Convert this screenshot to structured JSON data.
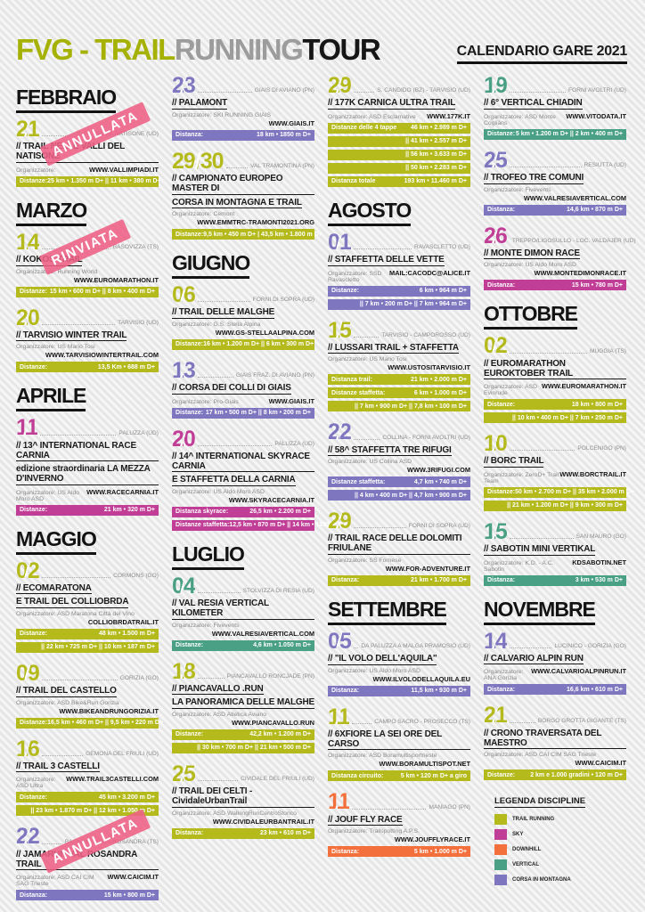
{
  "header": {
    "logo_part1": "FVG - TRAIL",
    "logo_part2": "RUNNING",
    "logo_part3": "TOUR",
    "label": "CALENDARIO GARE ",
    "year": "2021"
  },
  "disciplines": {
    "trail": "#b4ba1c",
    "sky": "#c13e97",
    "downhill": "#f3703c",
    "vertical": "#4aa084",
    "mountain": "#7f76c0"
  },
  "columns": [
    {
      "blocks": [
        {
          "month": "FEBBRAIO",
          "events": [
            {
              "d": "trail",
              "date": "21",
              "loc": "S. PIETRO AL NATISONE (UD)",
              "title": [
                "// TRAIL NELLE VALLI DEL NATISONE"
              ],
              "org": "Organizzatore:",
              "site": "WWW.VALLIMPIADI.IT",
              "inline": true,
              "stamp": "ANNULLATA",
              "bars": [
                [
                  "Distanze:",
                  "25 km • 1.350 m D+ || 11 km • 380 m D+"
                ]
              ]
            }
          ]
        },
        {
          "month": "MARZO",
          "events": [
            {
              "d": "trail",
              "date": "14",
              "loc": "BASOVIZZA (TS)",
              "title": [
                "// KOKOS TRAIL"
              ],
              "org": "Organizzatore: Running World",
              "site": "WWW.EUROMARATHON.IT",
              "inline": false,
              "stamp": "RINVIATA",
              "bars": [
                [
                  "Distanze:",
                  "15 km • 600 m D+ || 8 km • 400 m D+"
                ]
              ]
            },
            {
              "d": "trail",
              "date": "20",
              "loc": "TARVISIO (UD)",
              "title": [
                "// TARVISIO WINTER TRAIL"
              ],
              "org": "Organizzatore: US Mario Tosi",
              "site": "WWW.TARVISIOWINTERTRAIL.COM",
              "inline": false,
              "bars": [
                [
                  "Distanze:",
                  "13,5 Km • 688 m D+"
                ]
              ]
            }
          ]
        },
        {
          "month": "APRILE",
          "events": [
            {
              "d": "sky",
              "date": "11",
              "loc": "PALUZZA (UD)",
              "title": [
                "// 13^ INTERNATIONAL RACE CARNIA",
                "edizione straordinaria LA MEZZA D'INVERNO"
              ],
              "org": "Organizzatore: US Aldo Moro ASD",
              "site": "WWW.RACECARNIA.IT",
              "inline": true,
              "bars": [
                [
                  "Distanze:",
                  "21 km • 320 m D+"
                ]
              ]
            }
          ]
        },
        {
          "month": "MAGGIO",
          "events": [
            {
              "d": "trail",
              "date": "02",
              "loc": "CORMONS (GO)",
              "title": [
                "// ECOMARATONA",
                "E TRAIL DEL COLLIOBRDA"
              ],
              "org": "Organizzatore: ASD Maratona Città del Vino",
              "site": "COLLIOBRDATRAIL.IT",
              "inline": false,
              "bars": [
                [
                  "Distanze:",
                  "48 km • 1.500 m D+"
                ],
                [
                  "",
                  "|| 22 km • 725 m D+ || 10 km • 187 m D+"
                ]
              ]
            },
            {
              "d": "trail",
              "date": "09",
              "loc": "GORIZIA (GO)",
              "title": [
                "// TRAIL DEL CASTELLO"
              ],
              "org": "Organizzatore: ASD Bike&Run Gorizia",
              "site": "WWW.BIKEANDRUNGORIZIA.IT",
              "inline": false,
              "bars": [
                [
                  "Distanze:",
                  "16,5 km • 460 m D+ || 9,5 km • 220 m D+"
                ]
              ]
            },
            {
              "d": "trail",
              "date": "16",
              "loc": "GEMONA DEL FRIULI (UD)",
              "title": [
                "// TRAIL 3 CASTELLI"
              ],
              "org": "Organizzatore: ASD Ultra",
              "site": "WWW.TRAIL3CASTELLI.COM",
              "inline": true,
              "bars": [
                [
                  "Distanze:",
                  "45 km • 3.200 m D+"
                ],
                [
                  "",
                  "|| 23 km • 1.870 m D+ || 12 km • 1.050 m D+"
                ]
              ]
            },
            {
              "d": "mountain",
              "date": "22",
              "loc": "BAGNOLI DELLA ROSANDRA (TS)",
              "title": [
                "// JAMARUN VAL ROSANDRA TRAIL"
              ],
              "org": "Organizzatore: ASD CAI CIM SAG Trieste",
              "site": "WWW.CAICIM.IT",
              "inline": true,
              "stamp": "ANNULLATA",
              "bars": [
                [
                  "Distanza:",
                  "15 km • 800 m D+"
                ]
              ]
            }
          ]
        }
      ]
    },
    {
      "blocks": [
        {
          "month": null,
          "events": [
            {
              "d": "mountain",
              "date": "23",
              "loc": "GIAIS DI AVIANO (PN)",
              "title": [
                "// PALAMONT"
              ],
              "org": "Organizzatore: SKI RUNNING GIAIS",
              "site": "WWW.GIAIS.IT",
              "inline": false,
              "bars": [
                [
                  "Distanza:",
                  "18 km • 1850 m D+"
                ]
              ]
            },
            {
              "d": "trail",
              "date": "29/30",
              "loc": "VAL TRAMONTINA (PN)",
              "title": [
                "// CAMPIONATO EUROPEO MASTER DI",
                "CORSA IN MONTAGNA E TRAIL"
              ],
              "org": "Organizzatore: Cemont",
              "site": "WWW.EMMTRC-TRAMONTI2021.ORG",
              "inline": false,
              "bars": [
                [
                  "Distanze:",
                  "9,5 km • 450 m D+ | 43,5 km • 1.800 m D+"
                ]
              ]
            }
          ]
        },
        {
          "month": "GIUGNO",
          "events": [
            {
              "d": "trail",
              "date": "06",
              "loc": "FORNI DI SOPRA (UD)",
              "title": [
                "// TRAIL DELLE MALGHE"
              ],
              "org": "Organizzatore: G.S. Stella Alpina",
              "site": "WWW.GS-STELLAALPINA.COM",
              "inline": false,
              "bars": [
                [
                  "Distanze:",
                  "16 km • 1.200 m D+ || 6 km • 300 m D+"
                ]
              ]
            },
            {
              "d": "mountain",
              "date": "13",
              "loc": "GIAIS FRAZ. DI AVIANO (PN)",
              "title": [
                "// CORSA DEI COLLI DI GIAIS"
              ],
              "org": "Organizzatore: Pro-Giais",
              "site": "WWW.GIAIS.IT",
              "inline": true,
              "bars": [
                [
                  "Distanze:",
                  "17 km • 500 m D+ || 8 km • 200 m D+"
                ]
              ]
            },
            {
              "d": "sky",
              "date": "20",
              "loc": "PALUZZA (UD)",
              "title": [
                "// 14^ INTERNATIONAL SKYRACE CARNIA",
                "E STAFFETTA DELLA CARNIA"
              ],
              "org": "Organizzatore: US Aldo Moro ASD",
              "site": "WWW.SKYRACECARNIA.IT",
              "inline": false,
              "bars": [
                [
                  "Distanza skyrace:",
                  "26,5 km • 2.200 m D+"
                ],
                [
                  "Distanze staffetta:",
                  "12,5 km • 870 m D+ || 14 km • 1330 m D+"
                ]
              ]
            }
          ]
        },
        {
          "month": "LUGLIO",
          "events": [
            {
              "d": "vertical",
              "date": "04",
              "loc": "STOLVIZZA DI RESIA (UD)",
              "title": [
                "// VAL RESIA VERTICAL KILOMETER"
              ],
              "org": "Organizzatore: Fivevents",
              "site": "WWW.VALRESIAVERTICAL.COM",
              "inline": false,
              "bars": [
                [
                  "Distanze:",
                  "4,6 km • 1.050 m D+"
                ]
              ]
            },
            {
              "d": "trail",
              "date": "18",
              "loc": "PIANCAVALLO RONCJADE (PN)",
              "title": [
                "// PIANCAVALLO .RUN",
                "LA PANORAMICA DELLE MALGHE"
              ],
              "org": "Organizzatore: ASD Atletica Aviano",
              "site": "WWW.PIANCAVALLO.RUN",
              "inline": false,
              "bars": [
                [
                  "Distanze:",
                  "42,2 km • 1.200 m D+"
                ],
                [
                  "",
                  "|| 30 km • 700 m D+ || 21 km • 500 m D+"
                ]
              ]
            },
            {
              "d": "trail",
              "date": "25",
              "loc": "CIVIDALE DEL FRIULI (UD)",
              "title": [
                "// TRAIL DEI CELTI - CividaleUrbanTrail"
              ],
              "org": "Organizzatore: ASD WalkingRunCentroStorico",
              "site": "WWW.CIVIDALEURBANTRAIL.IT",
              "inline": false,
              "bars": [
                [
                  "Distanza:",
                  "23 km • 610 m D+"
                ]
              ]
            }
          ]
        }
      ]
    },
    {
      "blocks": [
        {
          "month": null,
          "events": [
            {
              "d": "trail",
              "date": "29",
              "loc": "S. CANDIDO (BZ) - TARVISIO (UD)",
              "title": [
                "// 177K CARNICA ULTRA TRAIL"
              ],
              "org": "Organizzatore: ASD Esclamative",
              "site": "WWW.177K.IT",
              "inline": true,
              "bars": [
                [
                  "Distanze delle 4 tappe",
                  "46 km • 2.989 m D+"
                ],
                [
                  "",
                  "|| 41 km • 2.557 m D+"
                ],
                [
                  "",
                  "|| 56 km • 3.633 m D+"
                ],
                [
                  "",
                  "|| 50 km • 2.283 m D+"
                ],
                [
                  "Distanza totale",
                  "193 km • 11.460 m D+"
                ]
              ]
            }
          ]
        },
        {
          "month": "AGOSTO",
          "events": [
            {
              "d": "mountain",
              "date": "01",
              "loc": "RAVASCLETTO (UD)",
              "title": [
                "// STAFFETTA DELLE VETTE"
              ],
              "org": "Organizzatore: SSD Ravascletto",
              "site": "MAIL:CACODC@ALICE.IT",
              "inline": true,
              "bars": [
                [
                  "Distanze:",
                  "6 km • 964 m D+"
                ],
                [
                  "",
                  "|| 7 km • 200 m D+ || 7 km • 964 m D+"
                ]
              ]
            },
            {
              "d": "trail",
              "date": "15",
              "loc": "TARVISIO - CAMPOROSSO (UD)",
              "title": [
                "// LUSSARI TRAIL + STAFFETTA"
              ],
              "org": "Organizzatore: US Mario Tosi",
              "site": "WWW.USTOSITARVISIO.IT",
              "inline": false,
              "bars": [
                [
                  "Distanza trail:",
                  "21 km • 2.000 m D+"
                ],
                [
                  "Distanze staffetta:",
                  "6 km • 1.000 m D+"
                ],
                [
                  "",
                  "|| 7 km • 900 m D+ || 7,8 km • 100 m D+"
                ]
              ]
            },
            {
              "d": "mountain",
              "date": "22",
              "loc": "COLLINA - FORNI AVOLTRI (UD)",
              "title": [
                "// 58^ STAFFETTA TRE RIFUGI"
              ],
              "org": "Organizzatore: US Collina ASD",
              "site": "WWW.3RIFUGI.COM",
              "inline": false,
              "bars": [
                [
                  "Distanze staffetta:",
                  "4,7 km • 740 m D+"
                ],
                [
                  "",
                  "|| 4 km • 400 m D+ || 4,7 km • 900 m D+"
                ]
              ]
            },
            {
              "d": "trail",
              "date": "29",
              "loc": "FORNI DI SOPRA (UD)",
              "title": [
                "// TRAIL RACE DELLE DOLOMITI FRIULANE"
              ],
              "org": "Organizzatore: SS Fornese",
              "site": "WWW.FOR-ADVENTURE.IT",
              "inline": false,
              "bars": [
                [
                  "Distanza:",
                  "21 km • 1.700 m D+"
                ]
              ]
            }
          ]
        },
        {
          "month": "SETTEMBRE",
          "events": [
            {
              "d": "mountain",
              "date": "05",
              "loc": "DA PALUZZA A MALGA PRAMOSIO (UD)",
              "title": [
                "// \"IL VOLO DELL'AQUILA\""
              ],
              "org": "Organizzatore: US Aldo Moro ASD",
              "site": "WWW.ILVOLODELLAQUILA.EU",
              "inline": false,
              "bars": [
                [
                  "Distanza:",
                  "11,5 km • 930 m D+"
                ]
              ]
            },
            {
              "d": "trail",
              "date": "11",
              "loc": "CAMPO SACRO - PROSECCO (TS)",
              "title": [
                "// 6XFIORE LA SEI ORE DEL CARSO"
              ],
              "org": "Organizzatore: ASD Boramultisportrieste",
              "site": "WWW.BORAMULTISPOT.NET",
              "inline": false,
              "bars": [
                [
                  "Distanza circuito:",
                  "5 km • 120 m D+ a giro"
                ]
              ]
            },
            {
              "d": "downhill",
              "date": "11",
              "loc": "MANIAGO (PN)",
              "title": [
                "// JOUF FLY RACE"
              ],
              "org": "Organizzatore: Trailspotting A.P.S.",
              "site": "WWW.JOUFFLYRACE.IT",
              "inline": false,
              "bars": [
                [
                  "Distanza:",
                  "5 km • 1.000 m D+"
                ]
              ]
            }
          ]
        }
      ]
    },
    {
      "blocks": [
        {
          "month": null,
          "events": [
            {
              "d": "vertical",
              "date": "19",
              "loc": "FORNI AVOLTRI (UD)",
              "title": [
                "// 6° VERTICAL CHIADIN"
              ],
              "org": "Organizzatore: ASD Monte Cogliàns",
              "site": "WWW.VITODATA.IT",
              "inline": true,
              "bars": [
                [
                  "Distanze:",
                  "5 km • 1.200 m D+ || 2 km • 400 m D+"
                ]
              ]
            },
            {
              "d": "mountain",
              "date": "25",
              "loc": "RESIUTTA (UD)",
              "title": [
                "// TROFEO TRE COMUNI"
              ],
              "org": "Organizzatore: Fivevents",
              "site": "WWW.VALRESIAVERTICAL.COM",
              "inline": false,
              "bars": [
                [
                  "Distanza:",
                  "14,6 km • 870 m D+"
                ]
              ]
            },
            {
              "d": "sky",
              "date": "26",
              "loc": "TREPPO/LIGOSULLO - LOC. VALDAJER (UD)",
              "title": [
                "// MONTE DIMON RACE"
              ],
              "org": "Organizzatore: US Aldo Moro ASD",
              "site": "WWW.MONTEDIMONRACE.IT",
              "inline": false,
              "bars": [
                [
                  "Distanza:",
                  "15 km • 780 m D+"
                ]
              ]
            }
          ]
        },
        {
          "month": "OTTOBRE",
          "events": [
            {
              "d": "trail",
              "date": "02",
              "loc": "MUGGIA (TS)",
              "title": [
                "// EUROMARATHON EUROKTOBER TRAIL"
              ],
              "org": "Organizzatore: ASD Evinrude",
              "site": "WWW.EUROMARATHON.IT",
              "inline": true,
              "bars": [
                [
                  "Distanze:",
                  "18 km • 800 m D+"
                ],
                [
                  "",
                  "|| 10 km • 400 m D+ || 7 km • 250 m D+"
                ]
              ]
            },
            {
              "d": "trail",
              "date": "10",
              "loc": "POLCENIGO (PN)",
              "title": [
                "// BORC TRAIL"
              ],
              "org": "Organizzatore: ZeroD+ Trail Team",
              "site": "WWW.BORCTRAIL.IT",
              "inline": true,
              "bars": [
                [
                  "Distanze:",
                  "50 km • 2.700 m D+ || 35 km • 2.000 m D+"
                ],
                [
                  "",
                  "|| 21 km • 1.200 m D+ || 9 km • 300 m D+"
                ]
              ]
            },
            {
              "d": "vertical",
              "date": "15",
              "loc": "SAN MAURO (GO)",
              "title": [
                "// SABOTIN MINI VERTIKAL"
              ],
              "org": "Organizzatore: K.D. - A.C. Sabotin",
              "site": "KDSABOTIN.NET",
              "inline": true,
              "bars": [
                [
                  "Distanza:",
                  "3 km • 530 m D+"
                ]
              ]
            }
          ]
        },
        {
          "month": "NOVEMBRE",
          "events": [
            {
              "d": "mountain",
              "date": "14",
              "loc": "LUCINICO - GORIZIA (GO)",
              "title": [
                "// CALVARIO ALPIN RUN"
              ],
              "org": "Organizzatore: ANA Gorizia",
              "site": "WWW.CALVARIOALPINRUN.IT",
              "inline": true,
              "bars": [
                [
                  "Distanza:",
                  "16,6 km • 610 m D+"
                ]
              ]
            },
            {
              "d": "trail",
              "date": "21",
              "loc": "BORGO GROTTA GIGANTE (TS)",
              "title": [
                "// CRONO TRAVERSATA DEL MAESTRO"
              ],
              "org": "Organizzatore: ASD CAI CIM SAG Trieste",
              "site": "WWW.CAICIM.IT",
              "inline": false,
              "bars": [
                [
                  "Distanze:",
                  "2 km e 1.000 gradini • 120 m D+"
                ]
              ]
            }
          ]
        }
      ]
    }
  ],
  "legend": {
    "title": "LEGENDA DISCIPLINE",
    "items": [
      {
        "label": "TRAIL RUNNING",
        "d": "trail"
      },
      {
        "label": "SKY",
        "d": "sky"
      },
      {
        "label": "DOWNHILL",
        "d": "downhill"
      },
      {
        "label": "VERTICAL",
        "d": "vertical"
      },
      {
        "label": "CORSA IN MONTAGNA",
        "d": "mountain"
      }
    ]
  }
}
